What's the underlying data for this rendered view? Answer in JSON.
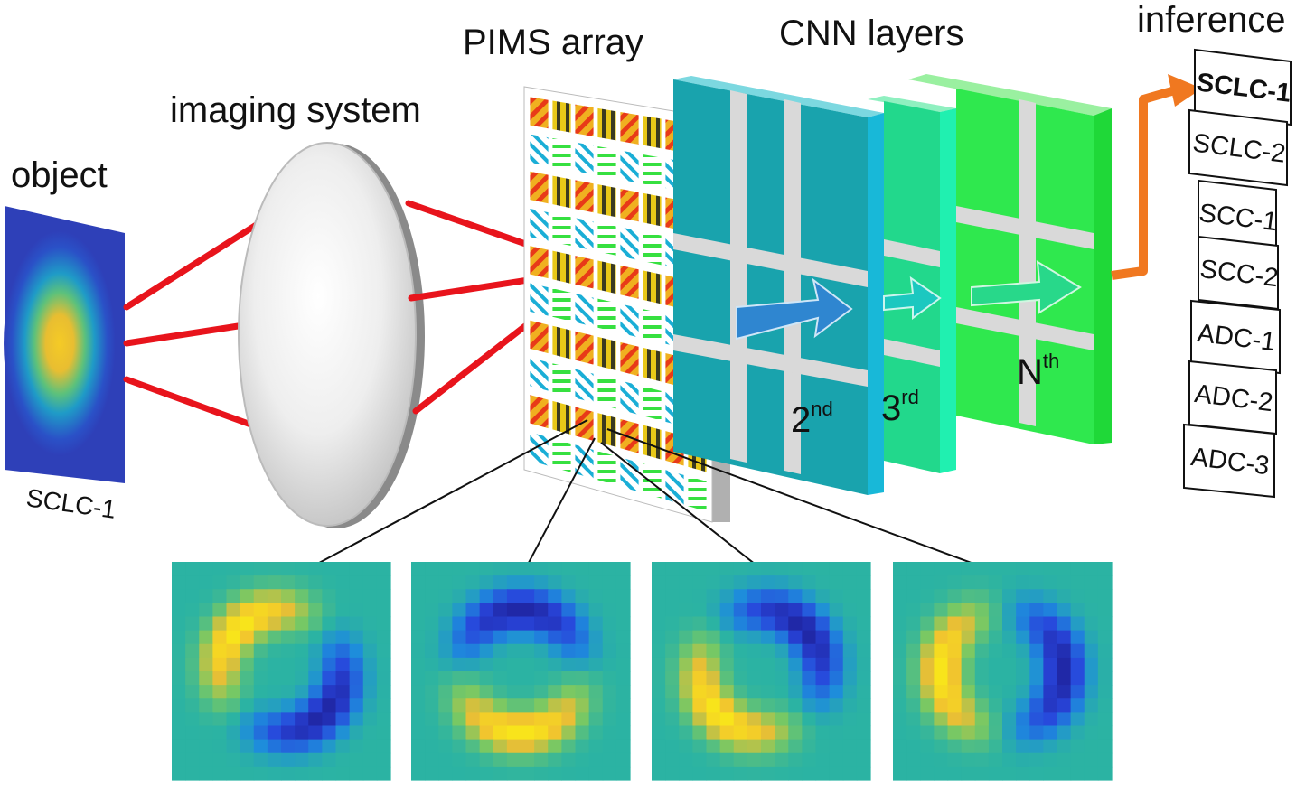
{
  "labels": {
    "object": "object",
    "object_caption": "SCLC-1",
    "imaging_system": "imaging system",
    "pims_array": "PIMS array",
    "cnn_layers": "CNN layers",
    "inference": "inference"
  },
  "cnn_layer_labels": [
    {
      "base": "2",
      "sup": "nd"
    },
    {
      "base": "3",
      "sup": "rd"
    },
    {
      "base": "N",
      "sup": "th"
    }
  ],
  "inference_classes": [
    "SCLC-1",
    "SCLC-2",
    "SCC-1",
    "SCC-2",
    "ADC-1",
    "ADC-2",
    "ADC-3"
  ],
  "inference_selected": 0,
  "colors": {
    "ray": "#e8141c",
    "highlight": "#f07820",
    "filter_green": "#2ee646",
    "filter_cyan": "#18b8c8",
    "layer_teal": "#19a3ad",
    "layer_green": "#2fe84e",
    "layer_mint": "#22d88c",
    "arrow_blue": "#2f86d0",
    "kernel_bg": "#2bb3a3"
  },
  "kernels": [
    {
      "name": "kernel-1",
      "pattern": "diag-down"
    },
    {
      "name": "kernel-2",
      "pattern": "horizontal"
    },
    {
      "name": "kernel-3",
      "pattern": "diag-up"
    },
    {
      "name": "kernel-4",
      "pattern": "vertical"
    }
  ]
}
